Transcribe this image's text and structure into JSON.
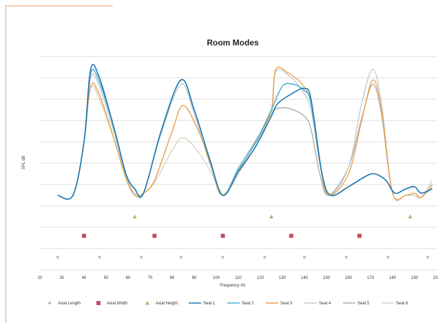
{
  "chart_data": {
    "type": "line",
    "title": "Room Modes",
    "xlabel": "Frequency Hz",
    "ylabel": "SPL dB",
    "xlim": [
      20,
      200
    ],
    "ylim": [
      0,
      10
    ],
    "x_ticks": [
      "20",
      "30",
      "40",
      "50",
      "60",
      "70",
      "80",
      "90",
      "100",
      "110",
      "120",
      "130",
      "140",
      "150",
      "160",
      "170",
      "180",
      "190",
      "200"
    ],
    "gridlines": true,
    "legend_position": "bottom",
    "colors": {
      "seat1": "#1f77b4",
      "seat2": "#4fb3d9",
      "seat3": "#f0a040",
      "seat4": "#c0c8c8",
      "seat5": "#a8b0b0",
      "seat6": "#d8cfc0",
      "axial_length": "#bbbbbb",
      "axial_width": "#c05060",
      "axial_height": "#b8b070",
      "grid": "#dddddd"
    },
    "mode_series": [
      {
        "name": "Axial Length",
        "marker": "circle",
        "y": 0.6,
        "x": [
          28,
          47,
          66,
          84,
          103,
          122,
          140,
          159,
          178,
          196
        ]
      },
      {
        "name": "Axial Width",
        "marker": "square",
        "y": 1.6,
        "x": [
          40,
          72,
          103,
          134,
          165
        ]
      },
      {
        "name": "Axial Height",
        "marker": "triangle",
        "y": 2.5,
        "x": [
          63,
          125,
          188
        ]
      }
    ],
    "series": [
      {
        "name": "Seat 1",
        "points": [
          [
            28,
            3.5
          ],
          [
            35,
            3.5
          ],
          [
            40,
            6
          ],
          [
            43,
            9.4
          ],
          [
            47,
            9
          ],
          [
            54,
            6.5
          ],
          [
            59,
            4.5
          ],
          [
            63,
            3.8
          ],
          [
            67,
            3.6
          ],
          [
            75,
            6.5
          ],
          [
            84,
            8.9
          ],
          [
            90,
            7.5
          ],
          [
            97,
            5.2
          ],
          [
            103,
            3.5
          ],
          [
            110,
            4.6
          ],
          [
            118,
            5.8
          ],
          [
            125,
            7.2
          ],
          [
            128,
            7.8
          ],
          [
            135,
            8.3
          ],
          [
            140,
            8.5
          ],
          [
            143,
            8
          ],
          [
            148,
            4.5
          ],
          [
            152,
            3.5
          ],
          [
            160,
            3.9
          ],
          [
            168,
            4.4
          ],
          [
            172,
            4.5
          ],
          [
            177,
            4.2
          ],
          [
            181,
            3.6
          ],
          [
            186,
            3.8
          ],
          [
            190,
            3.9
          ],
          [
            193,
            3.6
          ],
          [
            198,
            3.8
          ]
        ]
      },
      {
        "name": "Seat 2",
        "points": [
          [
            28,
            3.5
          ],
          [
            35,
            3.5
          ],
          [
            40,
            6
          ],
          [
            43,
            9.2
          ],
          [
            47,
            8.8
          ],
          [
            54,
            6.5
          ],
          [
            59,
            4.5
          ],
          [
            63,
            3.8
          ],
          [
            67,
            3.6
          ],
          [
            75,
            6.5
          ],
          [
            84,
            8.9
          ],
          [
            90,
            7.5
          ],
          [
            97,
            5.2
          ],
          [
            103,
            3.5
          ],
          [
            110,
            4.7
          ],
          [
            118,
            6
          ],
          [
            125,
            7.5
          ],
          [
            130,
            8.6
          ],
          [
            135,
            8.7
          ],
          [
            140,
            8.4
          ],
          [
            143,
            7.8
          ],
          [
            148,
            4.5
          ],
          [
            152,
            3.5
          ],
          [
            160,
            3.9
          ],
          [
            168,
            4.4
          ],
          [
            172,
            4.5
          ],
          [
            177,
            4.2
          ],
          [
            181,
            3.6
          ],
          [
            186,
            3.8
          ],
          [
            190,
            3.9
          ],
          [
            193,
            3.6
          ],
          [
            198,
            3.8
          ]
        ]
      },
      {
        "name": "Seat 3",
        "points": [
          [
            28,
            3.5
          ],
          [
            35,
            3.5
          ],
          [
            40,
            6
          ],
          [
            43,
            8.6
          ],
          [
            47,
            8.2
          ],
          [
            54,
            6
          ],
          [
            59,
            4.3
          ],
          [
            63,
            3.5
          ],
          [
            67,
            3.6
          ],
          [
            72,
            4.2
          ],
          [
            80,
            6.5
          ],
          [
            85,
            7.7
          ],
          [
            92,
            6.5
          ],
          [
            98,
            4.8
          ],
          [
            103,
            3.5
          ],
          [
            112,
            5
          ],
          [
            120,
            6.4
          ],
          [
            125,
            7.5
          ],
          [
            127,
            9.4
          ],
          [
            133,
            9.2
          ],
          [
            139,
            8.7
          ],
          [
            143,
            7.8
          ],
          [
            147,
            5
          ],
          [
            151,
            3.5
          ],
          [
            160,
            4.5
          ],
          [
            166,
            7
          ],
          [
            171,
            8.9
          ],
          [
            175,
            7.5
          ],
          [
            180,
            3.6
          ],
          [
            186,
            3.5
          ],
          [
            190,
            3.6
          ],
          [
            193,
            3.4
          ],
          [
            198,
            4
          ]
        ]
      },
      {
        "name": "Seat 4",
        "points": [
          [
            28,
            3.5
          ],
          [
            35,
            3.5
          ],
          [
            40,
            6
          ],
          [
            43,
            9
          ],
          [
            47,
            8.6
          ],
          [
            54,
            6.3
          ],
          [
            59,
            4.4
          ],
          [
            63,
            3.6
          ],
          [
            67,
            3.6
          ],
          [
            75,
            6.4
          ],
          [
            84,
            8.7
          ],
          [
            90,
            7.3
          ],
          [
            97,
            5
          ],
          [
            103,
            3.5
          ],
          [
            110,
            4.8
          ],
          [
            118,
            6.1
          ],
          [
            125,
            7.4
          ],
          [
            127,
            9.3
          ],
          [
            133,
            9.1
          ],
          [
            139,
            8.4
          ],
          [
            143,
            7.5
          ],
          [
            147,
            5
          ],
          [
            151,
            3.5
          ],
          [
            160,
            4.8
          ],
          [
            166,
            7.8
          ],
          [
            171,
            9.4
          ],
          [
            175,
            7.8
          ],
          [
            180,
            3.6
          ],
          [
            186,
            3.5
          ],
          [
            190,
            3.5
          ],
          [
            193,
            3.4
          ],
          [
            198,
            4.2
          ]
        ]
      },
      {
        "name": "Seat 5",
        "points": [
          [
            28,
            3.5
          ],
          [
            35,
            3.5
          ],
          [
            40,
            6
          ],
          [
            43,
            8.6
          ],
          [
            47,
            8.2
          ],
          [
            54,
            6
          ],
          [
            59,
            4.3
          ],
          [
            63,
            3.5
          ],
          [
            67,
            3.6
          ],
          [
            72,
            4.2
          ],
          [
            80,
            6.5
          ],
          [
            85,
            7.7
          ],
          [
            92,
            6.5
          ],
          [
            98,
            4.8
          ],
          [
            103,
            3.5
          ],
          [
            112,
            5
          ],
          [
            120,
            6.3
          ],
          [
            125,
            7.4
          ],
          [
            130,
            7.6
          ],
          [
            135,
            7.5
          ],
          [
            140,
            7.2
          ],
          [
            143,
            6.6
          ],
          [
            147,
            4.5
          ],
          [
            151,
            3.5
          ],
          [
            160,
            4.8
          ],
          [
            166,
            7.1
          ],
          [
            171,
            8.7
          ],
          [
            175,
            7.3
          ],
          [
            180,
            3.6
          ],
          [
            186,
            3.5
          ],
          [
            190,
            3.6
          ],
          [
            193,
            3.4
          ],
          [
            198,
            4
          ]
        ]
      },
      {
        "name": "Seat 6",
        "points": [
          [
            28,
            3.5
          ],
          [
            35,
            3.5
          ],
          [
            40,
            6
          ],
          [
            43,
            8.5
          ],
          [
            47,
            8
          ],
          [
            54,
            6
          ],
          [
            59,
            4.3
          ],
          [
            63,
            3.5
          ],
          [
            67,
            3.6
          ],
          [
            72,
            4.1
          ],
          [
            80,
            5.6
          ],
          [
            85,
            6.2
          ],
          [
            92,
            5.5
          ],
          [
            98,
            4.5
          ],
          [
            103,
            3.5
          ],
          [
            112,
            4.8
          ],
          [
            120,
            6.2
          ],
          [
            125,
            7.3
          ],
          [
            130,
            7.6
          ],
          [
            135,
            7.5
          ],
          [
            140,
            7.2
          ],
          [
            143,
            6.6
          ],
          [
            147,
            4.5
          ],
          [
            151,
            3.5
          ],
          [
            160,
            4.8
          ],
          [
            166,
            7.1
          ],
          [
            171,
            8.7
          ],
          [
            175,
            7.3
          ],
          [
            180,
            3.6
          ],
          [
            186,
            3.5
          ],
          [
            190,
            3.6
          ],
          [
            193,
            3.4
          ],
          [
            198,
            3.9
          ]
        ]
      }
    ]
  }
}
